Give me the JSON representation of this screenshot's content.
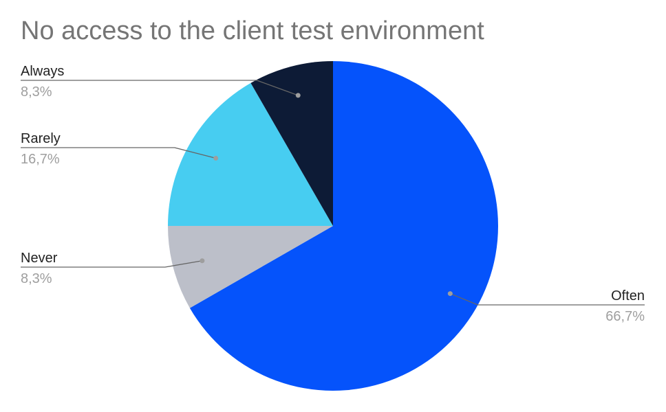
{
  "chart_data": {
    "type": "pie",
    "title": "No access to the client test environment",
    "slices": [
      {
        "label": "Often",
        "value": 66.7,
        "display": "66,7%",
        "color": "#0553FB"
      },
      {
        "label": "Never",
        "value": 8.3,
        "display": "8,3%",
        "color": "#BCBFC9"
      },
      {
        "label": "Rarely",
        "value": 16.7,
        "display": "16,7%",
        "color": "#47CDF1"
      },
      {
        "label": "Always",
        "value": 8.3,
        "display": "8,3%",
        "color": "#0D1B36"
      }
    ],
    "start_angle_deg": 0,
    "direction": "clockwise",
    "legend": "none",
    "labels_position": "outside-with-leader-lines"
  }
}
